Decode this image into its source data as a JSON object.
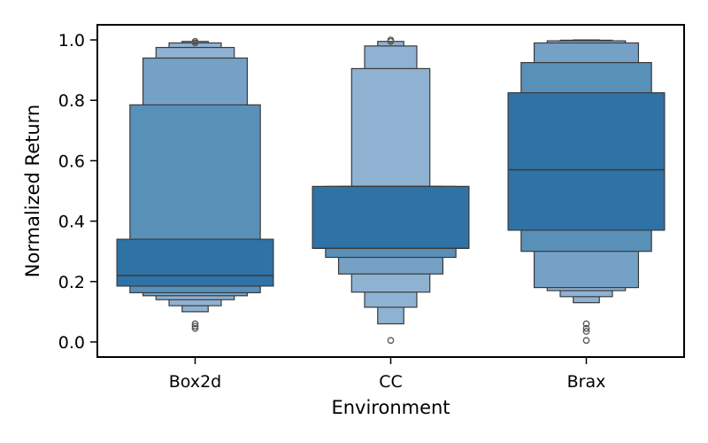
{
  "chart_data": {
    "type": "boxen",
    "xlabel": "Environment",
    "ylabel": "Normalized Return",
    "categories": [
      "Box2d",
      "CC",
      "Brax"
    ],
    "ylim": [
      -0.05,
      1.05
    ],
    "yticks": [
      0.0,
      0.2,
      0.4,
      0.6,
      0.8,
      1.0
    ],
    "ytick_labels": [
      "0.0",
      "0.2",
      "0.4",
      "0.6",
      "0.8",
      "1.0"
    ],
    "grid": false,
    "legend": "none",
    "colors": {
      "base": "#3274a1",
      "edge": "#3a3a3a",
      "levels": [
        "#2f72a6",
        "#5890b8",
        "#75a1c6",
        "#8fb2d3"
      ],
      "axis": "#000000"
    },
    "groups": [
      {
        "name": "Box2d",
        "median": 0.22,
        "boxes": [
          {
            "lo": 0.185,
            "hi": 0.34
          },
          {
            "lo": 0.163,
            "hi": 0.785
          },
          {
            "lo": 0.153,
            "hi": 0.94
          },
          {
            "lo": 0.14,
            "hi": 0.975
          },
          {
            "lo": 0.12,
            "hi": 0.99
          },
          {
            "lo": 0.1,
            "hi": 0.995
          }
        ],
        "outliers": [
          0.045,
          0.052,
          0.06,
          0.99,
          0.995
        ]
      },
      {
        "name": "CC",
        "median": 0.31,
        "boxes": [
          {
            "lo": 0.31,
            "hi": 0.515
          },
          {
            "lo": 0.28,
            "hi": 0.515
          },
          {
            "lo": 0.225,
            "hi": 0.515
          },
          {
            "lo": 0.165,
            "hi": 0.905
          },
          {
            "lo": 0.115,
            "hi": 0.98
          },
          {
            "lo": 0.06,
            "hi": 0.995
          }
        ],
        "outliers": [
          0.005,
          0.995,
          1.0
        ]
      },
      {
        "name": "Brax",
        "median": 0.57,
        "boxes": [
          {
            "lo": 0.37,
            "hi": 0.825
          },
          {
            "lo": 0.3,
            "hi": 0.925
          },
          {
            "lo": 0.18,
            "hi": 0.99
          },
          {
            "lo": 0.17,
            "hi": 0.997
          },
          {
            "lo": 0.15,
            "hi": 0.999
          },
          {
            "lo": 0.13,
            "hi": 1.0
          }
        ],
        "outliers": [
          0.005,
          0.035,
          0.045,
          0.06
        ]
      }
    ]
  }
}
